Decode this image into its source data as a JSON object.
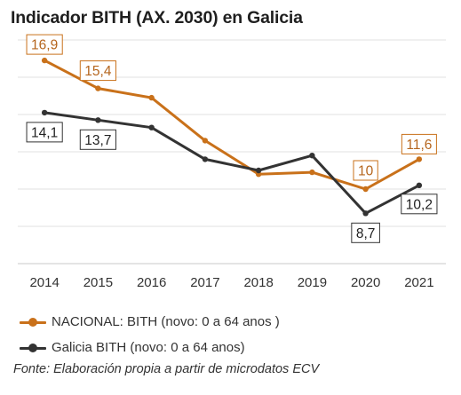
{
  "title": "Indicador BITH (AX. 2030) en Galicia",
  "source": "Fonte: Elaboración propia a partir de microdatos ECV",
  "chart_data": {
    "type": "line",
    "title": "Indicador BITH (AX. 2030) en Galicia",
    "categories": [
      "2014",
      "2015",
      "2016",
      "2017",
      "2018",
      "2019",
      "2020",
      "2021"
    ],
    "ylim": [
      6,
      18
    ],
    "grid": true,
    "legend_position": "bottom-left",
    "series": [
      {
        "name": "NACIONAL: BITH (novo: 0 a 64 anos )",
        "color": "#c9711a",
        "values": [
          16.9,
          15.4,
          14.9,
          12.6,
          10.8,
          10.9,
          10.0,
          11.6
        ],
        "labels": [
          "16,9",
          "15,4",
          "",
          "",
          "",
          "",
          "10",
          "11,6"
        ]
      },
      {
        "name": "Galicia BITH (novo: 0 a 64 anos)",
        "color": "#333333",
        "values": [
          14.1,
          13.7,
          13.3,
          11.6,
          11.0,
          11.8,
          8.7,
          10.2
        ],
        "labels": [
          "14,1",
          "13,7",
          "",
          "",
          "",
          "",
          "8,7",
          "10,2"
        ]
      }
    ]
  }
}
